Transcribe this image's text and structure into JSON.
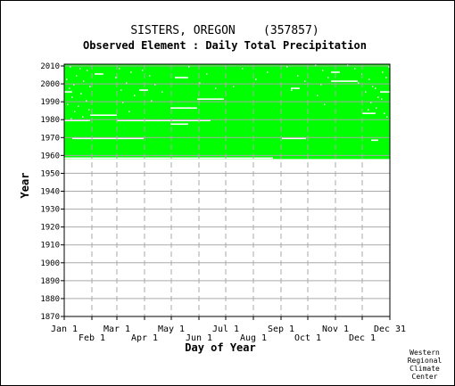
{
  "chart_data": {
    "type": "heatmap",
    "title": "SISTERS, OREGON    (357857)",
    "subtitle": "Observed Element : Daily Total Precipitation",
    "xlabel": "Day of Year",
    "ylabel": "Year",
    "x_range": [
      1,
      366
    ],
    "ylim": [
      1870,
      2011
    ],
    "y_ticks": [
      1870,
      1880,
      1890,
      1900,
      1910,
      1920,
      1930,
      1940,
      1950,
      1960,
      1970,
      1980,
      1990,
      2000,
      2010
    ],
    "x_ticks_top_row": [
      {
        "label": "Jan 1",
        "day": 1
      },
      {
        "label": "Mar 1",
        "day": 60
      },
      {
        "label": "May 1",
        "day": 121
      },
      {
        "label": "Jul 1",
        "day": 182
      },
      {
        "label": "Sep 1",
        "day": 244
      },
      {
        "label": "Nov 1",
        "day": 305
      },
      {
        "label": "Dec 31",
        "day": 366
      }
    ],
    "x_ticks_bottom_row": [
      {
        "label": "Feb 1",
        "day": 32
      },
      {
        "label": "Apr 1",
        "day": 91
      },
      {
        "label": "Jun 1",
        "day": 152
      },
      {
        "label": "Aug 1",
        "day": 213
      },
      {
        "label": "Oct 1",
        "day": 274
      },
      {
        "label": "Dec 1",
        "day": 335
      }
    ],
    "grid": true,
    "data_color": "#00ff00",
    "missing_color": "#ffffff",
    "record_start": {
      "day": 1,
      "year": 1958
    },
    "record_end": {
      "day": 366,
      "year": 2010
    },
    "missing_segments": [
      {
        "year": 1958,
        "start_day": 1,
        "end_day": 235
      },
      {
        "year": 1969,
        "start_day": 10,
        "end_day": 90
      },
      {
        "year": 1969,
        "start_day": 245,
        "end_day": 272
      },
      {
        "year": 1968,
        "start_day": 345,
        "end_day": 353
      },
      {
        "year": 1977,
        "start_day": 120,
        "end_day": 140
      },
      {
        "year": 1979,
        "start_day": 1,
        "end_day": 30
      },
      {
        "year": 1979,
        "start_day": 60,
        "end_day": 165
      },
      {
        "year": 1982,
        "start_day": 30,
        "end_day": 60
      },
      {
        "year": 1983,
        "start_day": 335,
        "end_day": 350
      },
      {
        "year": 1986,
        "start_day": 120,
        "end_day": 150
      },
      {
        "year": 1991,
        "start_day": 150,
        "end_day": 180
      },
      {
        "year": 1995,
        "start_day": 1,
        "end_day": 10
      },
      {
        "year": 1995,
        "start_day": 355,
        "end_day": 366
      },
      {
        "year": 1996,
        "start_day": 85,
        "end_day": 95
      },
      {
        "year": 1997,
        "start_day": 255,
        "end_day": 265
      },
      {
        "year": 2001,
        "start_day": 300,
        "end_day": 330
      },
      {
        "year": 2003,
        "start_day": 125,
        "end_day": 140
      },
      {
        "year": 2005,
        "start_day": 35,
        "end_day": 45
      },
      {
        "year": 2006,
        "start_day": 300,
        "end_day": 310
      }
    ],
    "missing_days_sample": [
      {
        "year": 2009,
        "day": 7
      },
      {
        "year": 2008,
        "day": 18
      },
      {
        "year": 2007,
        "day": 26
      },
      {
        "year": 2004,
        "day": 14
      },
      {
        "year": 2002,
        "day": 3
      },
      {
        "year": 2001,
        "day": 22
      },
      {
        "year": 1999,
        "day": 11
      },
      {
        "year": 1998,
        "day": 29
      },
      {
        "year": 1997,
        "day": 6
      },
      {
        "year": 1994,
        "day": 19
      },
      {
        "year": 1992,
        "day": 9
      },
      {
        "year": 1990,
        "day": 25
      },
      {
        "year": 1988,
        "day": 4
      },
      {
        "year": 1987,
        "day": 16
      },
      {
        "year": 1985,
        "day": 28
      },
      {
        "year": 1984,
        "day": 12
      },
      {
        "year": 1981,
        "day": 21
      },
      {
        "year": 1980,
        "day": 8
      },
      {
        "year": 2008,
        "day": 62
      },
      {
        "year": 2006,
        "day": 75
      },
      {
        "year": 2003,
        "day": 58
      },
      {
        "year": 2000,
        "day": 70
      },
      {
        "year": 1996,
        "day": 64
      },
      {
        "year": 1993,
        "day": 79
      },
      {
        "year": 1989,
        "day": 66
      },
      {
        "year": 1984,
        "day": 73
      },
      {
        "year": 2007,
        "day": 88
      },
      {
        "year": 2004,
        "day": 96
      },
      {
        "year": 1999,
        "day": 102
      },
      {
        "year": 1995,
        "day": 110
      },
      {
        "year": 1990,
        "day": 98
      },
      {
        "year": 2009,
        "day": 140
      },
      {
        "year": 2005,
        "day": 160
      },
      {
        "year": 2000,
        "day": 152
      },
      {
        "year": 1997,
        "day": 170
      },
      {
        "year": 2008,
        "day": 200
      },
      {
        "year": 2002,
        "day": 215
      },
      {
        "year": 1998,
        "day": 190
      },
      {
        "year": 2006,
        "day": 228
      },
      {
        "year": 2009,
        "day": 250
      },
      {
        "year": 2004,
        "day": 262
      },
      {
        "year": 2001,
        "day": 270
      },
      {
        "year": 1996,
        "day": 255
      },
      {
        "year": 2010,
        "day": 282
      },
      {
        "year": 2007,
        "day": 290
      },
      {
        "year": 2003,
        "day": 296
      },
      {
        "year": 1999,
        "day": 288
      },
      {
        "year": 1993,
        "day": 284
      },
      {
        "year": 1988,
        "day": 292
      },
      {
        "year": 2010,
        "day": 318
      },
      {
        "year": 2008,
        "day": 326
      },
      {
        "year": 2005,
        "day": 334
      },
      {
        "year": 2002,
        "day": 342
      },
      {
        "year": 2000,
        "day": 330
      },
      {
        "year": 1998,
        "day": 346
      },
      {
        "year": 1995,
        "day": 338
      },
      {
        "year": 1992,
        "day": 352
      },
      {
        "year": 1989,
        "day": 344
      },
      {
        "year": 1986,
        "day": 350
      },
      {
        "year": 1983,
        "day": 359
      },
      {
        "year": 1981,
        "day": 362
      },
      {
        "year": 2009,
        "day": 364
      },
      {
        "year": 2006,
        "day": 357
      },
      {
        "year": 2003,
        "day": 361
      },
      {
        "year": 1997,
        "day": 349
      },
      {
        "year": 1991,
        "day": 356
      },
      {
        "year": 1985,
        "day": 341
      }
    ],
    "credit_lines": [
      "Western",
      "Regional",
      "Climate",
      "Center"
    ]
  }
}
